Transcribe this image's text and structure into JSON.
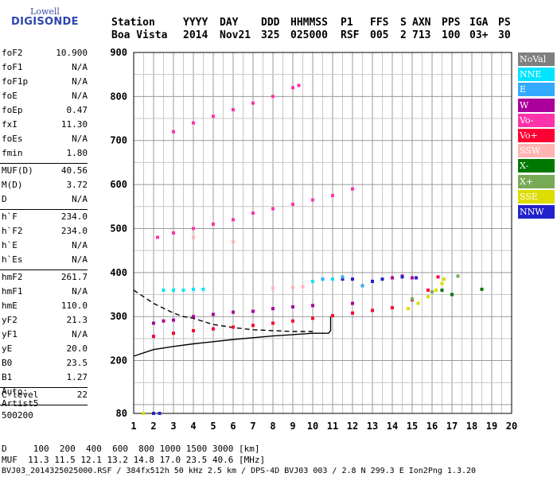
{
  "logo": {
    "top": "Lowell",
    "bottom": "DIGISONDE"
  },
  "header": {
    "row1": [
      "Station",
      "YYYY",
      "DAY",
      "DDD",
      "HHMMSS",
      "P1",
      "FFS",
      "S",
      "AXN",
      "PPS",
      "IGA",
      "PS"
    ],
    "row2": [
      "Boa Vista",
      "2014",
      "Nov21",
      "325",
      "025000",
      "RSF",
      "005",
      "2",
      "713",
      "100",
      "03+",
      "30"
    ]
  },
  "params": [
    {
      "name": "foF2",
      "value": "10.900"
    },
    {
      "name": "foF1",
      "value": "N/A"
    },
    {
      "name": "foF1p",
      "value": "N/A"
    },
    {
      "name": "foE",
      "value": "N/A"
    },
    {
      "name": "foEp",
      "value": "0.47"
    },
    {
      "name": "fxI",
      "value": "11.30"
    },
    {
      "name": "foEs",
      "value": "N/A"
    },
    {
      "name": "fmin",
      "value": "1.80"
    },
    {
      "name": "MUF(D)",
      "value": "40.56"
    },
    {
      "name": "M(D)",
      "value": "3.72"
    },
    {
      "name": "D",
      "value": "N/A"
    },
    {
      "name": "h`F",
      "value": "234.0"
    },
    {
      "name": "h`F2",
      "value": "234.0"
    },
    {
      "name": "h`E",
      "value": "N/A"
    },
    {
      "name": "h`Es",
      "value": "N/A"
    },
    {
      "name": "hmF2",
      "value": "261.7"
    },
    {
      "name": "hmF1",
      "value": "N/A"
    },
    {
      "name": "hmE",
      "value": "110.0"
    },
    {
      "name": "yF2",
      "value": "21.3"
    },
    {
      "name": "yF1",
      "value": "N/A"
    },
    {
      "name": "yE",
      "value": "20.0"
    },
    {
      "name": "B0",
      "value": "23.5"
    },
    {
      "name": "B1",
      "value": "1.27"
    },
    {
      "name": "C-level",
      "value": "22"
    }
  ],
  "auto": [
    "Auto:",
    "Artist5",
    "500200"
  ],
  "legend": [
    {
      "label": "NoVal",
      "color": "#7f7f7f"
    },
    {
      "label": "NNE",
      "color": "#00e5ff"
    },
    {
      "label": "E",
      "color": "#33aaff"
    },
    {
      "label": "W",
      "color": "#aa0099"
    },
    {
      "label": "Vo-",
      "color": "#ff33aa"
    },
    {
      "label": "Vo+",
      "color": "#ff0033"
    },
    {
      "label": "SSW",
      "color": "#ffb3b3"
    },
    {
      "label": "X-",
      "color": "#007700"
    },
    {
      "label": "X+",
      "color": "#77aa55"
    },
    {
      "label": "SSE",
      "color": "#dddd00"
    },
    {
      "label": "NNW",
      "color": "#2222cc"
    }
  ],
  "footer": {
    "distance_line": "D     100  200  400  600  800 1000 1500 3000 [km]",
    "muf_line": "MUF  11.3 11.5 12.1 13.2 14.8 17.0 23.5 40.6 [MHz]",
    "file_line": "BVJ03_2014325025000.RSF / 384fx512h 50 kHz 2.5 km / DPS-4D BVJ03 003 / 2.8 N 299.3 E Ion2Png 1.3.20"
  },
  "chart_data": {
    "type": "scatter",
    "x_ticks": [
      1,
      2,
      3,
      4,
      5,
      6,
      7,
      8,
      9,
      10,
      11,
      12,
      13,
      14,
      15,
      16,
      17,
      18,
      19,
      20
    ],
    "y_ticks": [
      80,
      200,
      300,
      400,
      500,
      600,
      700,
      800,
      900
    ],
    "xlim": [
      1,
      20
    ],
    "ylim": [
      80,
      900
    ],
    "grid": true,
    "legend_position": "right",
    "series": [
      {
        "name": "Vo+",
        "color": "#ff0033",
        "points": [
          [
            2,
            255
          ],
          [
            3,
            262
          ],
          [
            4,
            268
          ],
          [
            5,
            272
          ],
          [
            6,
            276
          ],
          [
            7,
            280
          ],
          [
            8,
            285
          ],
          [
            9,
            290
          ],
          [
            10,
            296
          ],
          [
            11,
            302
          ],
          [
            12,
            308
          ],
          [
            13,
            314
          ],
          [
            14,
            320
          ],
          [
            15,
            338
          ],
          [
            15.8,
            360
          ],
          [
            16.3,
            390
          ]
        ]
      },
      {
        "name": "W",
        "color": "#aa0099",
        "points": [
          [
            2,
            285
          ],
          [
            2.5,
            290
          ],
          [
            3,
            292
          ],
          [
            4,
            300
          ],
          [
            5,
            305
          ],
          [
            6,
            310
          ],
          [
            7,
            312
          ],
          [
            8,
            318
          ],
          [
            9,
            322
          ],
          [
            10,
            325
          ],
          [
            12,
            330
          ],
          [
            13,
            380
          ],
          [
            14,
            388
          ],
          [
            14.5,
            392
          ],
          [
            15,
            388
          ]
        ]
      },
      {
        "name": "NNE",
        "color": "#00e5ff",
        "points": [
          [
            2.5,
            360
          ],
          [
            3,
            360
          ],
          [
            3.5,
            360
          ],
          [
            4,
            362
          ],
          [
            4.5,
            362
          ],
          [
            10,
            380
          ],
          [
            10.5,
            385
          ],
          [
            11,
            385
          ]
        ]
      },
      {
        "name": "NNW",
        "color": "#2222cc",
        "points": [
          [
            11.5,
            385
          ],
          [
            12,
            385
          ],
          [
            13,
            380
          ],
          [
            13.5,
            385
          ],
          [
            14.5,
            390
          ],
          [
            15.2,
            388
          ],
          [
            2,
            80
          ],
          [
            2.3,
            80
          ]
        ]
      },
      {
        "name": "SSE",
        "color": "#dddd00",
        "points": [
          [
            14.8,
            318
          ],
          [
            15.3,
            330
          ],
          [
            15.8,
            345
          ],
          [
            16.2,
            360
          ],
          [
            16.5,
            375
          ],
          [
            16.6,
            385
          ],
          [
            1.5,
            80
          ]
        ]
      },
      {
        "name": "SSW",
        "color": "#ffb3b3",
        "points": [
          [
            8,
            365
          ],
          [
            9,
            366
          ],
          [
            9.5,
            368
          ],
          [
            4,
            480
          ],
          [
            6,
            470
          ]
        ]
      },
      {
        "name": "X-",
        "color": "#007700",
        "points": [
          [
            16.5,
            360
          ],
          [
            17,
            350
          ],
          [
            18.5,
            362
          ]
        ]
      },
      {
        "name": "X+",
        "color": "#77aa55",
        "points": [
          [
            15,
            340
          ],
          [
            16,
            356
          ],
          [
            17.3,
            392
          ]
        ]
      },
      {
        "name": "E",
        "color": "#33aaff",
        "points": [
          [
            10.5,
            385
          ],
          [
            11.5,
            390
          ],
          [
            12.5,
            370
          ]
        ]
      },
      {
        "name": "Vo-",
        "color": "#ff33aa",
        "points": [
          [
            2.2,
            480
          ],
          [
            3,
            490
          ],
          [
            4,
            500
          ],
          [
            5,
            510
          ],
          [
            6,
            520
          ],
          [
            7,
            535
          ],
          [
            8,
            545
          ],
          [
            9,
            555
          ],
          [
            10,
            565
          ],
          [
            11,
            575
          ],
          [
            12,
            590
          ],
          [
            3,
            720
          ],
          [
            4,
            740
          ],
          [
            5,
            755
          ],
          [
            6,
            770
          ],
          [
            7,
            785
          ],
          [
            8,
            800
          ],
          [
            9,
            820
          ],
          [
            9.3,
            825
          ]
        ]
      }
    ],
    "curves": [
      {
        "name": "profile",
        "style": "solid",
        "points": [
          [
            1,
            210
          ],
          [
            2,
            225
          ],
          [
            3,
            232
          ],
          [
            4,
            238
          ],
          [
            5,
            243
          ],
          [
            6,
            248
          ],
          [
            7,
            252
          ],
          [
            8,
            256
          ],
          [
            9,
            259
          ],
          [
            10,
            262
          ],
          [
            10.8,
            262
          ],
          [
            10.9,
            268
          ],
          [
            10.9,
            300
          ]
        ]
      },
      {
        "name": "profile-upper",
        "style": "dashed",
        "points": [
          [
            1,
            360
          ],
          [
            2,
            330
          ],
          [
            3,
            308
          ],
          [
            3.5,
            300
          ],
          [
            4,
            296
          ],
          [
            5,
            282
          ],
          [
            6,
            275
          ],
          [
            7,
            270
          ],
          [
            8,
            268
          ],
          [
            9,
            266
          ],
          [
            10,
            266
          ]
        ]
      }
    ]
  }
}
